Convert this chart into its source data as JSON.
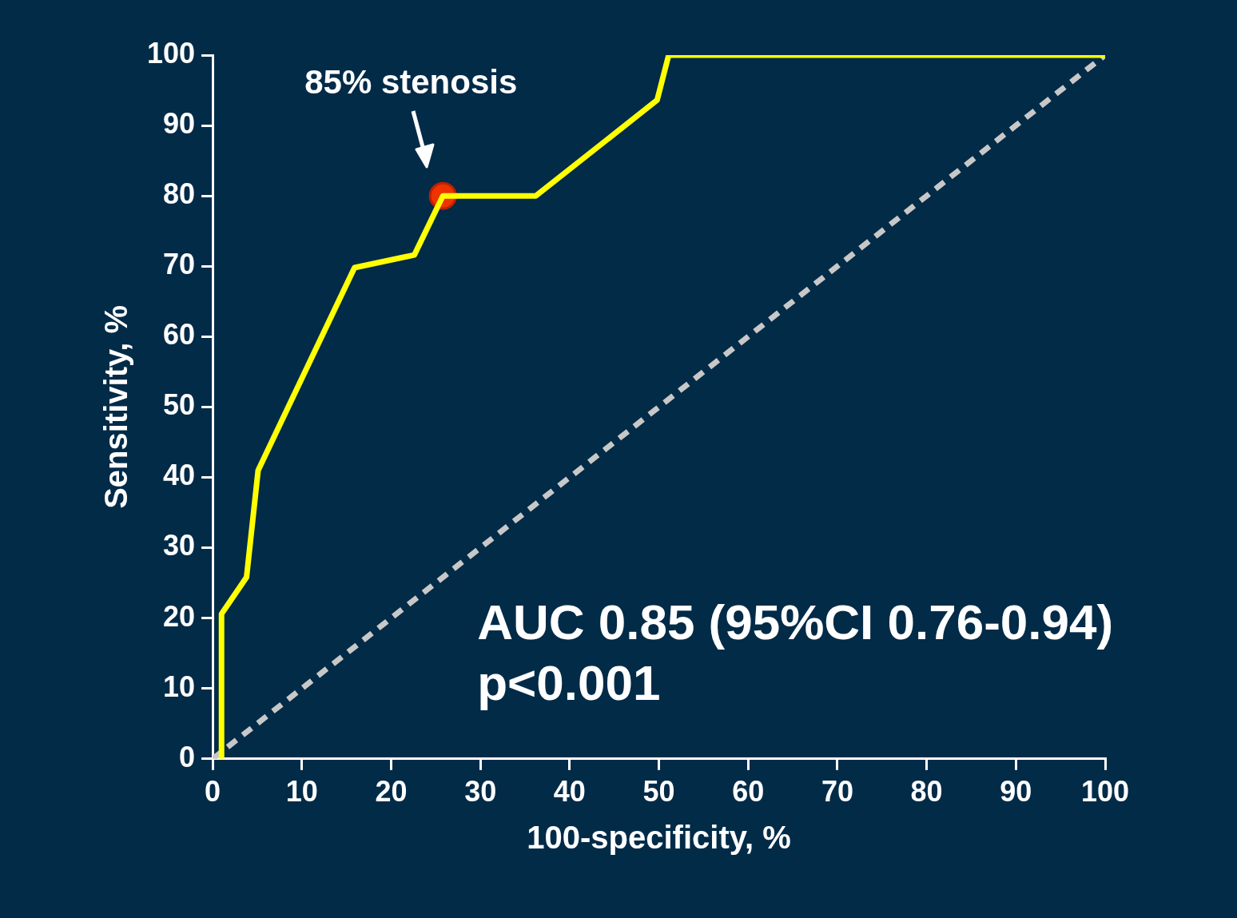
{
  "chart_data": {
    "type": "line",
    "xlabel": "100-specificity, %",
    "ylabel": "Sensitivity, %",
    "xlim": [
      0,
      100
    ],
    "ylim": [
      0,
      100
    ],
    "xticks": [
      0,
      10,
      20,
      30,
      40,
      50,
      60,
      70,
      80,
      90,
      100
    ],
    "yticks": [
      0,
      10,
      20,
      30,
      40,
      50,
      60,
      70,
      80,
      90,
      100
    ],
    "grid": false,
    "legend": false,
    "series": [
      {
        "color": "#ffff00",
        "line_style": "solid",
        "marker": "none",
        "x": [
          1,
          1,
          3.8,
          5.1,
          15.9,
          22.6,
          25.8,
          36.2,
          49.8,
          51.1,
          100
        ],
        "values": [
          0,
          20.6,
          25.8,
          41,
          69.8,
          71.6,
          80,
          80,
          93.6,
          100,
          100
        ]
      },
      {
        "color": "#c8c8c8",
        "line_style": "dashed",
        "marker": "none",
        "x": [
          0,
          100
        ],
        "values": [
          0,
          100
        ]
      },
      {
        "type": "scatter",
        "color": "#ee3300",
        "marker": "circle",
        "x": [
          25.8
        ],
        "values": [
          80
        ]
      }
    ],
    "annotations": [
      {
        "text": "85% stenosis",
        "x": 25.8,
        "y": 80
      },
      "AUC 0.85 (95%CI 0.76-0.94)",
      "p<0.001"
    ]
  }
}
